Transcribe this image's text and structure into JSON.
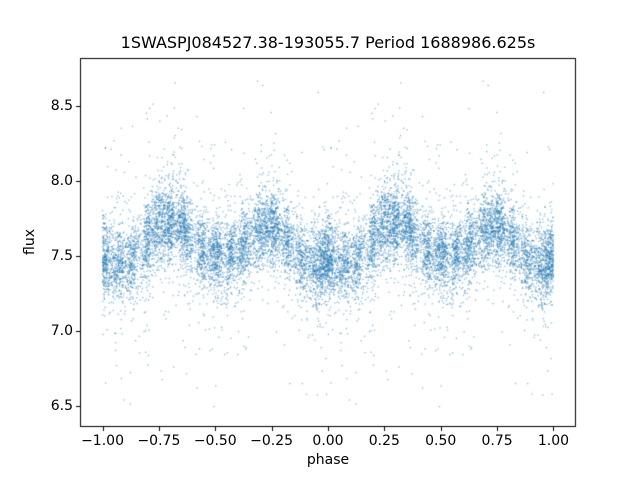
{
  "figure": {
    "background": "#ffffff"
  },
  "chart_data": {
    "type": "scatter",
    "title": "1SWASPJ084527.38-193055.7 Period 1688986.625s",
    "xlabel": "phase",
    "ylabel": "flux",
    "xlim": [
      -1.1,
      1.1
    ],
    "ylim": [
      6.36,
      8.82
    ],
    "xticks": [
      -1.0,
      -0.75,
      -0.5,
      -0.25,
      0.0,
      0.25,
      0.5,
      0.75,
      1.0
    ],
    "xtick_labels": [
      "−1.00",
      "−0.75",
      "−0.50",
      "−0.25",
      "0.00",
      "0.25",
      "0.50",
      "0.75",
      "1.00"
    ],
    "yticks": [
      6.5,
      7.0,
      7.5,
      8.0,
      8.5
    ],
    "ytick_labels": [
      "6.5",
      "7.0",
      "7.5",
      "8.0",
      "8.5"
    ],
    "grid": false,
    "legend": null,
    "marker_color": "#1f77b4",
    "marker_alpha": 0.5,
    "marker_size_px": 1.3,
    "n_base_points": 7000,
    "plotted_twice_per_point": true,
    "seed": 20,
    "data_y_range": [
      6.47,
      8.71
    ],
    "mean_flux_curve": [
      [
        0.0,
        7.5
      ],
      [
        0.05,
        7.45
      ],
      [
        0.1,
        7.42
      ],
      [
        0.15,
        7.5
      ],
      [
        0.2,
        7.62
      ],
      [
        0.25,
        7.7
      ],
      [
        0.3,
        7.72
      ],
      [
        0.35,
        7.7
      ],
      [
        0.4,
        7.6
      ],
      [
        0.45,
        7.52
      ],
      [
        0.5,
        7.5
      ],
      [
        0.55,
        7.48
      ],
      [
        0.6,
        7.52
      ],
      [
        0.65,
        7.6
      ],
      [
        0.7,
        7.68
      ],
      [
        0.75,
        7.7
      ],
      [
        0.8,
        7.64
      ],
      [
        0.85,
        7.55
      ],
      [
        0.9,
        7.45
      ],
      [
        0.95,
        7.42
      ],
      [
        1.0,
        7.5
      ]
    ],
    "noise": {
      "sigma_core": 0.12,
      "sigma_mid": 0.25,
      "frac_mid": 0.15,
      "sigma_tail": 0.5,
      "frac_tail": 0.04
    },
    "phase_uniform_fraction": 0.4,
    "phase_clusters": [
      [
        0.0,
        0.02,
        1.2
      ],
      [
        0.07,
        0.015,
        0.6
      ],
      [
        0.13,
        0.01,
        0.4
      ],
      [
        0.2,
        0.012,
        0.5
      ],
      [
        0.255,
        0.02,
        0.9
      ],
      [
        0.3,
        0.01,
        0.5
      ],
      [
        0.36,
        0.02,
        0.9
      ],
      [
        0.44,
        0.012,
        0.5
      ],
      [
        0.5,
        0.018,
        0.8
      ],
      [
        0.565,
        0.012,
        0.5
      ],
      [
        0.625,
        0.015,
        0.6
      ],
      [
        0.7,
        0.02,
        0.8
      ],
      [
        0.76,
        0.015,
        0.7
      ],
      [
        0.82,
        0.01,
        0.4
      ],
      [
        0.88,
        0.015,
        0.5
      ],
      [
        0.955,
        0.02,
        0.8
      ]
    ]
  }
}
